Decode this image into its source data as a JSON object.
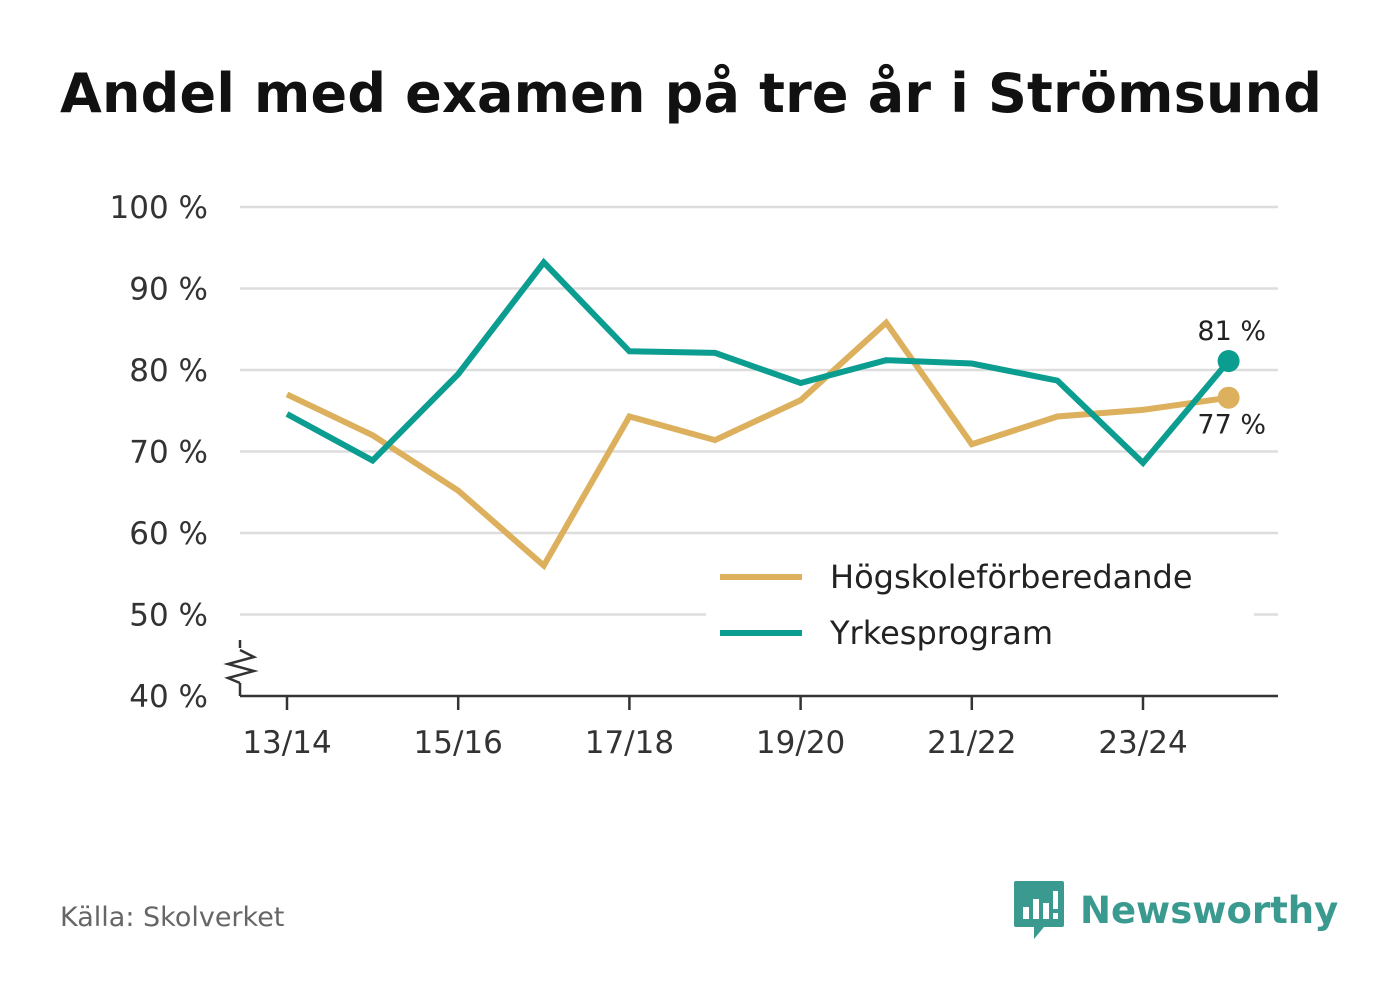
{
  "title": "Andel med examen på tre år i Strömsund",
  "source": "Källa: Skolverket",
  "brand": {
    "name": "Newsworthy",
    "icon": "newsworthy-logo-icon",
    "color": "#3a9a8f"
  },
  "chart_data": {
    "type": "line",
    "categories": [
      "13/14",
      "14/15",
      "15/16",
      "16/17",
      "17/18",
      "18/19",
      "19/20",
      "20/21",
      "21/22",
      "22/23",
      "23/24",
      "24/25"
    ],
    "x_tick_labels": [
      "13/14",
      "15/16",
      "17/18",
      "19/20",
      "21/22",
      "23/24"
    ],
    "y_ticks": [
      40,
      50,
      60,
      70,
      80,
      90,
      100
    ],
    "y_tick_labels": [
      "40 %",
      "50 %",
      "60 %",
      "70 %",
      "80 %",
      "90 %",
      "100 %"
    ],
    "ylim": [
      40,
      100
    ],
    "axis_break": true,
    "grid": true,
    "legend_position": "bottom-right",
    "series": [
      {
        "name": "Högskoleförberedande",
        "color": "#dcb05c",
        "values": [
          77,
          72,
          65.2,
          56,
          74.3,
          71.4,
          76.3,
          85.8,
          70.9,
          74.3,
          75.1,
          76.6
        ],
        "end_label": "77 %"
      },
      {
        "name": "Yrkesprogram",
        "color": "#0c9d91",
        "values": [
          74.6,
          68.9,
          79.5,
          93.2,
          82.3,
          82.1,
          78.4,
          81.2,
          80.8,
          78.7,
          68.6,
          81.1
        ],
        "end_label": "81 %"
      }
    ]
  }
}
